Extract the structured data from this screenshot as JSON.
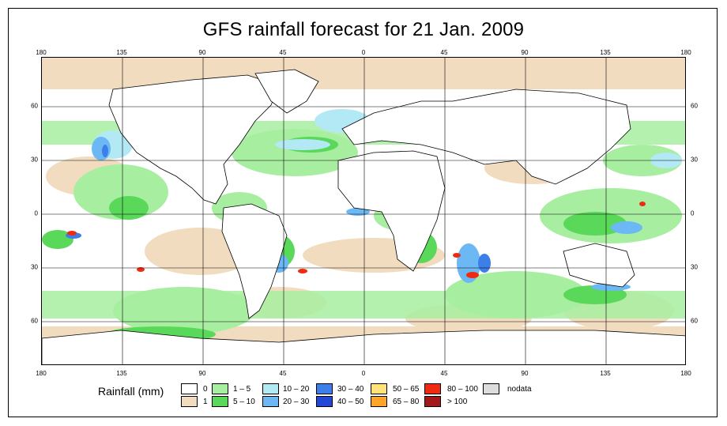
{
  "title": "GFS rainfall forecast for 21 Jan. 2009",
  "axes": {
    "lon_ticks": [
      "180",
      "135",
      "90",
      "45",
      "0",
      "45",
      "90",
      "135",
      "180"
    ],
    "lat_ticks": [
      "60",
      "30",
      "0",
      "30",
      "60"
    ]
  },
  "legend": {
    "title": "Rainfall (mm)",
    "items": [
      {
        "label": "0",
        "color": "#ffffff"
      },
      {
        "label": "1",
        "color": "#f2dcbf"
      },
      {
        "label": "1 – 5",
        "color": "#a8eea0"
      },
      {
        "label": "5 – 10",
        "color": "#5ad85a"
      },
      {
        "label": "10 – 20",
        "color": "#b3e8f5"
      },
      {
        "label": "20 – 30",
        "color": "#6cb8f5"
      },
      {
        "label": "30 – 40",
        "color": "#3c7fe8"
      },
      {
        "label": "40 – 50",
        "color": "#2249d6"
      },
      {
        "label": "50 – 65",
        "color": "#ffe27a"
      },
      {
        "label": "65 – 80",
        "color": "#ffa62a"
      },
      {
        "label": "80 – 100",
        "color": "#ee2a10"
      },
      {
        "label": "> 100",
        "color": "#a31818"
      },
      {
        "label": "nodata",
        "color": "#dcdcdc"
      }
    ]
  }
}
